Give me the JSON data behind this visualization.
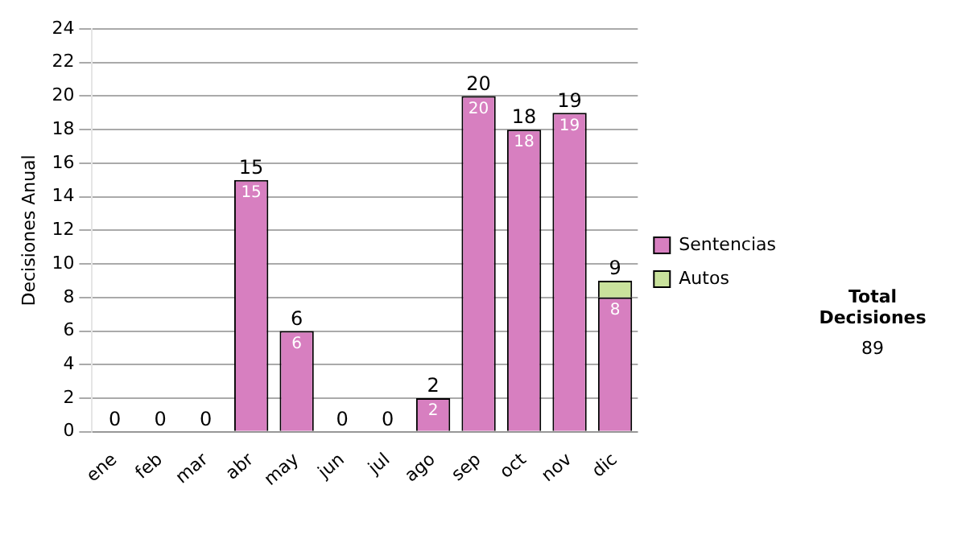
{
  "chart_data": {
    "type": "bar",
    "ylabel": "Decisiones Anual",
    "categories": [
      "ene",
      "feb",
      "mar",
      "abr",
      "may",
      "jun",
      "jul",
      "ago",
      "sep",
      "oct",
      "nov",
      "dic"
    ],
    "series": [
      {
        "name": "Sentencias",
        "color": "#d77fc0",
        "values": [
          0,
          0,
          0,
          15,
          6,
          0,
          0,
          2,
          20,
          18,
          19,
          8
        ],
        "value_labels": [
          null,
          null,
          null,
          "15",
          "6",
          null,
          null,
          "2",
          "20",
          "18",
          "19",
          "8"
        ]
      },
      {
        "name": "Autos",
        "color": "#c9e29c",
        "values": [
          0,
          0,
          0,
          0,
          0,
          0,
          0,
          0,
          0,
          0,
          0,
          1
        ]
      }
    ],
    "stacked": true,
    "totals": [
      "0",
      "0",
      "0",
      "15",
      "6",
      "0",
      "0",
      "2",
      "20",
      "18",
      "19",
      "9"
    ],
    "ylim": [
      0,
      24
    ],
    "yticks": [
      0,
      2,
      4,
      6,
      8,
      10,
      12,
      14,
      16,
      18,
      20,
      22,
      24
    ],
    "grid": "y",
    "legend": "right",
    "annotations": [
      "Total Decisiones",
      "89"
    ]
  }
}
